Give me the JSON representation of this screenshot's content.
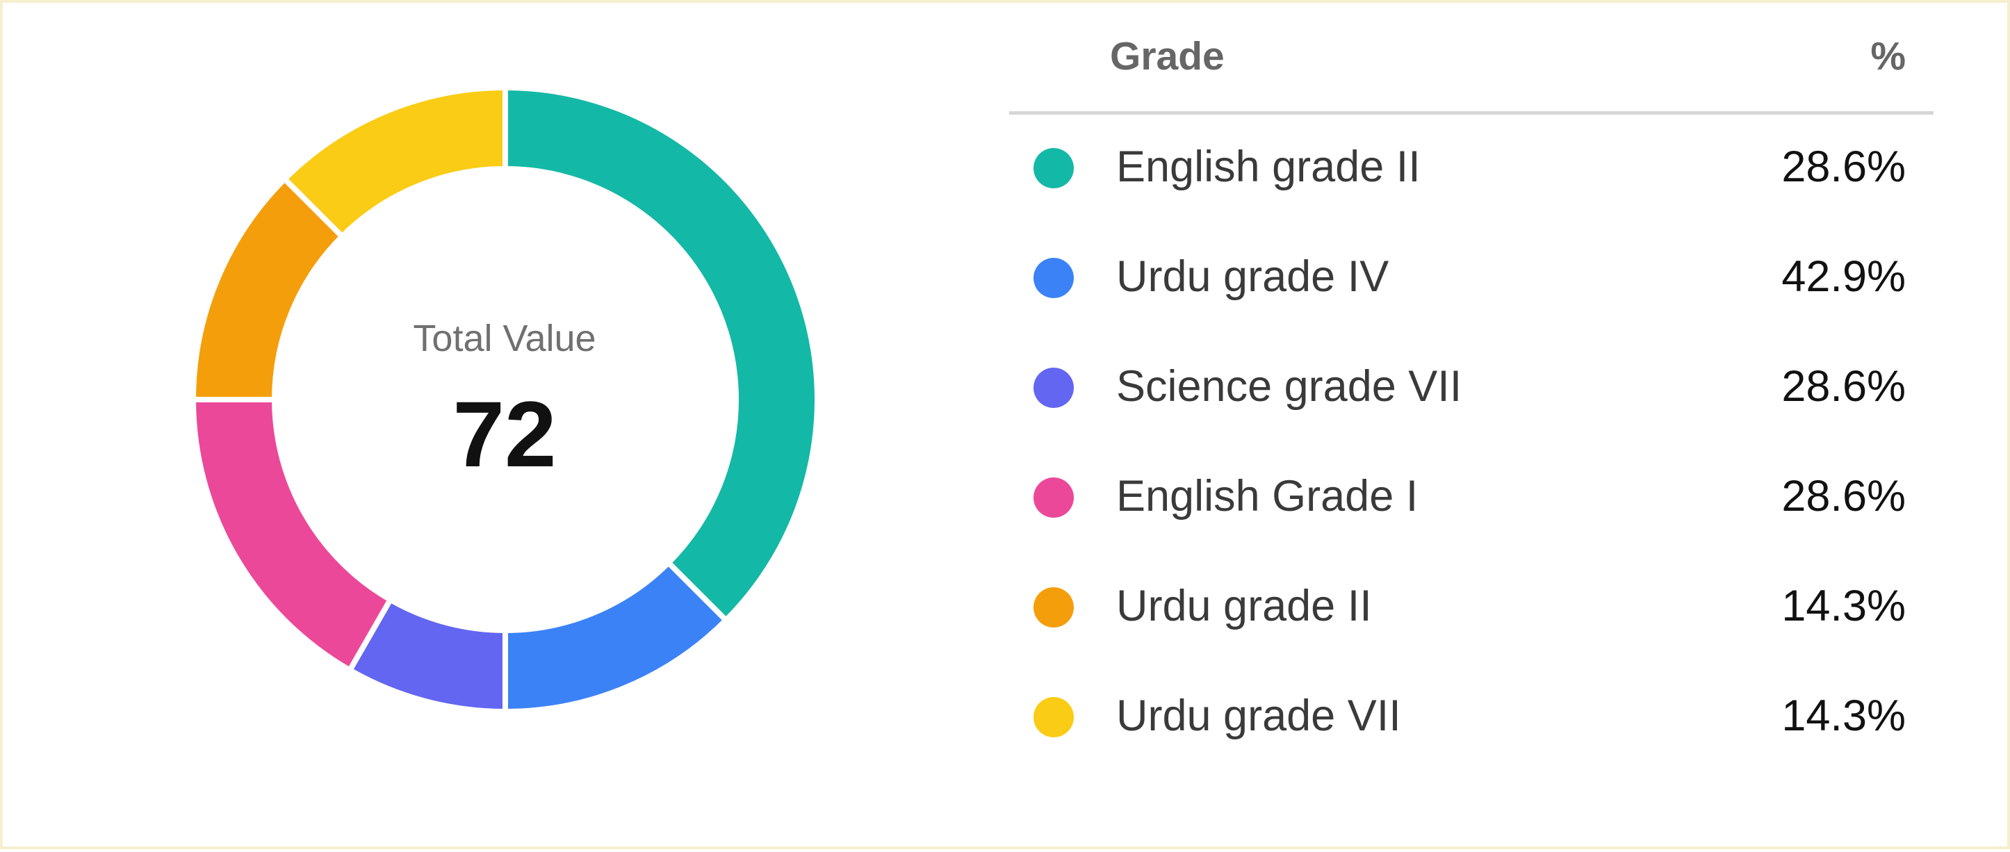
{
  "center": {
    "label": "Total Value",
    "value": "72"
  },
  "legend": {
    "header_grade": "Grade",
    "header_pct": "%",
    "items": [
      {
        "name": "English grade II",
        "pct": "28.6%",
        "color": "#14b8a6"
      },
      {
        "name": "Urdu grade IV",
        "pct": "42.9%",
        "color": "#3b82f6"
      },
      {
        "name": "Science grade VII",
        "pct": "28.6%",
        "color": "#6366f1"
      },
      {
        "name": "English Grade I",
        "pct": "28.6%",
        "color": "#ec4899"
      },
      {
        "name": "Urdu grade II",
        "pct": "14.3%",
        "color": "#f59e0b"
      },
      {
        "name": "Urdu grade VII",
        "pct": "14.3%",
        "color": "#facc15"
      }
    ]
  },
  "chart_data": {
    "type": "pie",
    "donut": true,
    "total": 72,
    "categories": [
      "English grade II",
      "Urdu grade IV",
      "Science grade VII",
      "English Grade I",
      "Urdu grade II",
      "Urdu grade VII"
    ],
    "values": [
      28.6,
      42.9,
      28.6,
      28.6,
      14.3,
      14.3
    ],
    "slice_shares": [
      0.375,
      0.125,
      0.083,
      0.167,
      0.125,
      0.125
    ],
    "colors": [
      "#14b8a6",
      "#3b82f6",
      "#6366f1",
      "#ec4899",
      "#f59e0b",
      "#facc15"
    ],
    "legend_position": "right"
  }
}
